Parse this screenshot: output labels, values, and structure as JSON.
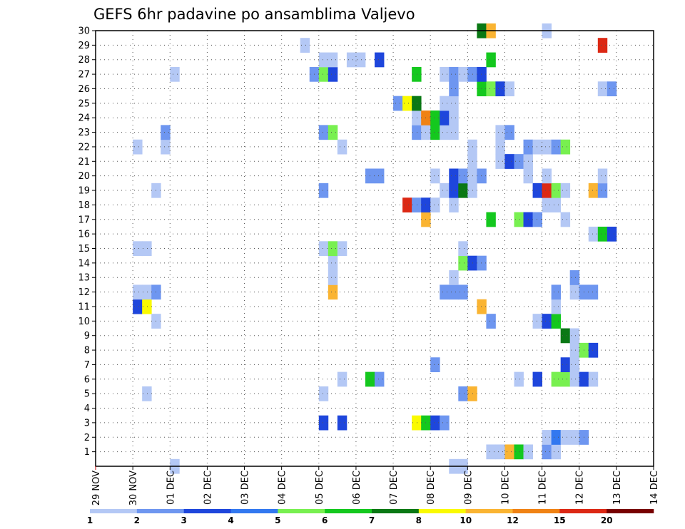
{
  "chart_data": {
    "type": "heatmap",
    "title": "GEFS 6hr padavine po ansamblima Valjevo",
    "x_ticks": [
      "29 NOV",
      "30 NOV",
      "01 DEC",
      "02 DEC",
      "03 DEC",
      "04 DEC",
      "05 DEC",
      "06 DEC",
      "07 DEC",
      "08 DEC",
      "09 DEC",
      "10 DEC",
      "11 DEC",
      "12 DEC",
      "13 DEC",
      "14 DEC"
    ],
    "y_ticks": [
      1,
      2,
      3,
      4,
      5,
      6,
      7,
      8,
      9,
      10,
      11,
      12,
      13,
      14,
      15,
      16,
      17,
      18,
      19,
      20,
      21,
      22,
      23,
      24,
      25,
      26,
      27,
      28,
      29,
      30
    ],
    "ylim": [
      0,
      30
    ],
    "time_steps_per_day": 4,
    "color_levels": [
      "1",
      "2",
      "3",
      "4",
      "5",
      "6",
      "7",
      "8",
      "10",
      "12",
      "15",
      "20"
    ],
    "color_scale": [
      "#b4c8f5",
      "#6e96f0",
      "#1e46dc",
      "#3278f0",
      "#78f050",
      "#14c81e",
      "#0a7814",
      "#fafa00",
      "#fab432",
      "#f08214",
      "#dc2814",
      "#780000"
    ],
    "grid": true,
    "legend": "colorbar-bottom",
    "cells": [
      {
        "m": 1,
        "t": 42,
        "v": 1
      },
      {
        "m": 1,
        "t": 43,
        "v": 1
      },
      {
        "m": 1,
        "t": 44,
        "v": 9
      },
      {
        "m": 1,
        "t": 45,
        "v": 6
      },
      {
        "m": 1,
        "t": 46,
        "v": 1
      },
      {
        "m": 1,
        "t": 48,
        "v": 2
      },
      {
        "m": 1,
        "t": 49,
        "v": 1
      },
      {
        "m": 2,
        "t": 48,
        "v": 1
      },
      {
        "m": 2,
        "t": 49,
        "v": 4
      },
      {
        "m": 2,
        "t": 50,
        "v": 1
      },
      {
        "m": 2,
        "t": 51,
        "v": 1
      },
      {
        "m": 2,
        "t": 52,
        "v": 2
      },
      {
        "m": 3,
        "t": 24,
        "v": 3
      },
      {
        "m": 3,
        "t": 26,
        "v": 3
      },
      {
        "m": 3,
        "t": 34,
        "v": 8
      },
      {
        "m": 3,
        "t": 35,
        "v": 6
      },
      {
        "m": 3,
        "t": 36,
        "v": 3
      },
      {
        "m": 3,
        "t": 37,
        "v": 2
      },
      {
        "m": 5,
        "t": 5,
        "v": 1
      },
      {
        "m": 5,
        "t": 24,
        "v": 1
      },
      {
        "m": 5,
        "t": 39,
        "v": 2
      },
      {
        "m": 5,
        "t": 40,
        "v": 9
      },
      {
        "m": 6,
        "t": 26,
        "v": 1
      },
      {
        "m": 6,
        "t": 29,
        "v": 6
      },
      {
        "m": 6,
        "t": 30,
        "v": 2
      },
      {
        "m": 6,
        "t": 45,
        "v": 1
      },
      {
        "m": 6,
        "t": 47,
        "v": 3
      },
      {
        "m": 6,
        "t": 49,
        "v": 5
      },
      {
        "m": 6,
        "t": 50,
        "v": 5
      },
      {
        "m": 6,
        "t": 51,
        "v": 1
      },
      {
        "m": 6,
        "t": 52,
        "v": 3
      },
      {
        "m": 6,
        "t": 53,
        "v": 1
      },
      {
        "m": 7,
        "t": 36,
        "v": 2
      },
      {
        "m": 7,
        "t": 50,
        "v": 3
      },
      {
        "m": 7,
        "t": 51,
        "v": 1
      },
      {
        "m": 8,
        "t": 51,
        "v": 1
      },
      {
        "m": 8,
        "t": 52,
        "v": 5
      },
      {
        "m": 8,
        "t": 53,
        "v": 3
      },
      {
        "m": 9,
        "t": 50,
        "v": 7
      },
      {
        "m": 9,
        "t": 51,
        "v": 1
      },
      {
        "m": 10,
        "t": 6,
        "v": 1
      },
      {
        "m": 10,
        "t": 42,
        "v": 2
      },
      {
        "m": 10,
        "t": 47,
        "v": 1
      },
      {
        "m": 10,
        "t": 48,
        "v": 3
      },
      {
        "m": 10,
        "t": 49,
        "v": 6
      },
      {
        "m": 11,
        "t": 4,
        "v": 3
      },
      {
        "m": 11,
        "t": 5,
        "v": 8
      },
      {
        "m": 11,
        "t": 41,
        "v": 9
      },
      {
        "m": 11,
        "t": 49,
        "v": 1
      },
      {
        "m": 12,
        "t": 4,
        "v": 1
      },
      {
        "m": 12,
        "t": 5,
        "v": 1
      },
      {
        "m": 12,
        "t": 6,
        "v": 2
      },
      {
        "m": 12,
        "t": 25,
        "v": 9
      },
      {
        "m": 12,
        "t": 37,
        "v": 2
      },
      {
        "m": 12,
        "t": 38,
        "v": 2
      },
      {
        "m": 12,
        "t": 39,
        "v": 2
      },
      {
        "m": 12,
        "t": 49,
        "v": 2
      },
      {
        "m": 12,
        "t": 51,
        "v": 1
      },
      {
        "m": 12,
        "t": 52,
        "v": 2
      },
      {
        "m": 12,
        "t": 53,
        "v": 2
      },
      {
        "m": 13,
        "t": 25,
        "v": 1
      },
      {
        "m": 13,
        "t": 38,
        "v": 1
      },
      {
        "m": 13,
        "t": 51,
        "v": 2
      },
      {
        "m": 14,
        "t": 25,
        "v": 1
      },
      {
        "m": 14,
        "t": 39,
        "v": 5
      },
      {
        "m": 14,
        "t": 40,
        "v": 3
      },
      {
        "m": 14,
        "t": 41,
        "v": 2
      },
      {
        "m": 15,
        "t": 4,
        "v": 1
      },
      {
        "m": 15,
        "t": 5,
        "v": 1
      },
      {
        "m": 15,
        "t": 24,
        "v": 1
      },
      {
        "m": 15,
        "t": 25,
        "v": 5
      },
      {
        "m": 15,
        "t": 26,
        "v": 1
      },
      {
        "m": 15,
        "t": 39,
        "v": 1
      },
      {
        "m": 16,
        "t": 53,
        "v": 1
      },
      {
        "m": 16,
        "t": 54,
        "v": 6
      },
      {
        "m": 16,
        "t": 55,
        "v": 3
      },
      {
        "m": 17,
        "t": 35,
        "v": 9
      },
      {
        "m": 17,
        "t": 42,
        "v": 6
      },
      {
        "m": 17,
        "t": 45,
        "v": 5
      },
      {
        "m": 17,
        "t": 46,
        "v": 3
      },
      {
        "m": 17,
        "t": 47,
        "v": 2
      },
      {
        "m": 17,
        "t": 50,
        "v": 1
      },
      {
        "m": 18,
        "t": 33,
        "v": 11
      },
      {
        "m": 18,
        "t": 34,
        "v": 2
      },
      {
        "m": 18,
        "t": 35,
        "v": 3
      },
      {
        "m": 18,
        "t": 36,
        "v": 1
      },
      {
        "m": 18,
        "t": 38,
        "v": 1
      },
      {
        "m": 18,
        "t": 48,
        "v": 1
      },
      {
        "m": 18,
        "t": 49,
        "v": 1
      },
      {
        "m": 19,
        "t": 6,
        "v": 1
      },
      {
        "m": 19,
        "t": 24,
        "v": 2
      },
      {
        "m": 19,
        "t": 37,
        "v": 1
      },
      {
        "m": 19,
        "t": 38,
        "v": 3
      },
      {
        "m": 19,
        "t": 39,
        "v": 7
      },
      {
        "m": 19,
        "t": 40,
        "v": 1
      },
      {
        "m": 19,
        "t": 47,
        "v": 3
      },
      {
        "m": 19,
        "t": 48,
        "v": 11
      },
      {
        "m": 19,
        "t": 49,
        "v": 5
      },
      {
        "m": 19,
        "t": 50,
        "v": 1
      },
      {
        "m": 19,
        "t": 53,
        "v": 9
      },
      {
        "m": 19,
        "t": 54,
        "v": 2
      },
      {
        "m": 20,
        "t": 29,
        "v": 2
      },
      {
        "m": 20,
        "t": 30,
        "v": 2
      },
      {
        "m": 20,
        "t": 36,
        "v": 1
      },
      {
        "m": 20,
        "t": 38,
        "v": 3
      },
      {
        "m": 20,
        "t": 39,
        "v": 2
      },
      {
        "m": 20,
        "t": 40,
        "v": 1
      },
      {
        "m": 20,
        "t": 41,
        "v": 2
      },
      {
        "m": 20,
        "t": 46,
        "v": 1
      },
      {
        "m": 20,
        "t": 48,
        "v": 1
      },
      {
        "m": 20,
        "t": 54,
        "v": 1
      },
      {
        "m": 21,
        "t": 40,
        "v": 1
      },
      {
        "m": 21,
        "t": 43,
        "v": 1
      },
      {
        "m": 21,
        "t": 44,
        "v": 3
      },
      {
        "m": 21,
        "t": 45,
        "v": 2
      },
      {
        "m": 21,
        "t": 46,
        "v": 1
      },
      {
        "m": 22,
        "t": 4,
        "v": 1
      },
      {
        "m": 22,
        "t": 7,
        "v": 1
      },
      {
        "m": 22,
        "t": 26,
        "v": 1
      },
      {
        "m": 22,
        "t": 40,
        "v": 1
      },
      {
        "m": 22,
        "t": 43,
        "v": 1
      },
      {
        "m": 22,
        "t": 46,
        "v": 2
      },
      {
        "m": 22,
        "t": 47,
        "v": 1
      },
      {
        "m": 22,
        "t": 48,
        "v": 1
      },
      {
        "m": 22,
        "t": 49,
        "v": 2
      },
      {
        "m": 22,
        "t": 50,
        "v": 5
      },
      {
        "m": 23,
        "t": 7,
        "v": 2
      },
      {
        "m": 23,
        "t": 24,
        "v": 2
      },
      {
        "m": 23,
        "t": 25,
        "v": 5
      },
      {
        "m": 23,
        "t": 34,
        "v": 2
      },
      {
        "m": 23,
        "t": 35,
        "v": 1
      },
      {
        "m": 23,
        "t": 36,
        "v": 6
      },
      {
        "m": 23,
        "t": 37,
        "v": 1
      },
      {
        "m": 23,
        "t": 38,
        "v": 1
      },
      {
        "m": 23,
        "t": 43,
        "v": 1
      },
      {
        "m": 23,
        "t": 44,
        "v": 2
      },
      {
        "m": 24,
        "t": 34,
        "v": 1
      },
      {
        "m": 24,
        "t": 35,
        "v": 10
      },
      {
        "m": 24,
        "t": 36,
        "v": 6
      },
      {
        "m": 24,
        "t": 37,
        "v": 3
      },
      {
        "m": 24,
        "t": 38,
        "v": 1
      },
      {
        "m": 25,
        "t": 32,
        "v": 2
      },
      {
        "m": 25,
        "t": 33,
        "v": 8
      },
      {
        "m": 25,
        "t": 34,
        "v": 7
      },
      {
        "m": 25,
        "t": 37,
        "v": 1
      },
      {
        "m": 25,
        "t": 38,
        "v": 1
      },
      {
        "m": 26,
        "t": 38,
        "v": 2
      },
      {
        "m": 26,
        "t": 41,
        "v": 6
      },
      {
        "m": 26,
        "t": 42,
        "v": 5
      },
      {
        "m": 26,
        "t": 43,
        "v": 3
      },
      {
        "m": 26,
        "t": 44,
        "v": 1
      },
      {
        "m": 26,
        "t": 54,
        "v": 1
      },
      {
        "m": 26,
        "t": 55,
        "v": 2
      },
      {
        "m": 27,
        "t": 8,
        "v": 1
      },
      {
        "m": 27,
        "t": 23,
        "v": 2
      },
      {
        "m": 27,
        "t": 24,
        "v": 5
      },
      {
        "m": 27,
        "t": 25,
        "v": 3
      },
      {
        "m": 27,
        "t": 34,
        "v": 6
      },
      {
        "m": 27,
        "t": 37,
        "v": 1
      },
      {
        "m": 27,
        "t": 38,
        "v": 2
      },
      {
        "m": 27,
        "t": 39,
        "v": 1
      },
      {
        "m": 27,
        "t": 40,
        "v": 2
      },
      {
        "m": 27,
        "t": 41,
        "v": 3
      },
      {
        "m": 28,
        "t": 24,
        "v": 1
      },
      {
        "m": 28,
        "t": 25,
        "v": 1
      },
      {
        "m": 28,
        "t": 27,
        "v": 1
      },
      {
        "m": 28,
        "t": 28,
        "v": 1
      },
      {
        "m": 28,
        "t": 30,
        "v": 3
      },
      {
        "m": 28,
        "t": 42,
        "v": 6
      },
      {
        "m": 29,
        "t": 22,
        "v": 1
      },
      {
        "m": 29,
        "t": 54,
        "v": 11
      },
      {
        "m": 30,
        "t": 41,
        "v": 7
      },
      {
        "m": 30,
        "t": 42,
        "v": 9
      },
      {
        "m": 30,
        "t": 48,
        "v": 1
      },
      {
        "m": 0,
        "t": 8,
        "v": 1
      },
      {
        "m": 0,
        "t": 38,
        "v": 1
      },
      {
        "m": 0,
        "t": 39,
        "v": 1
      }
    ]
  }
}
